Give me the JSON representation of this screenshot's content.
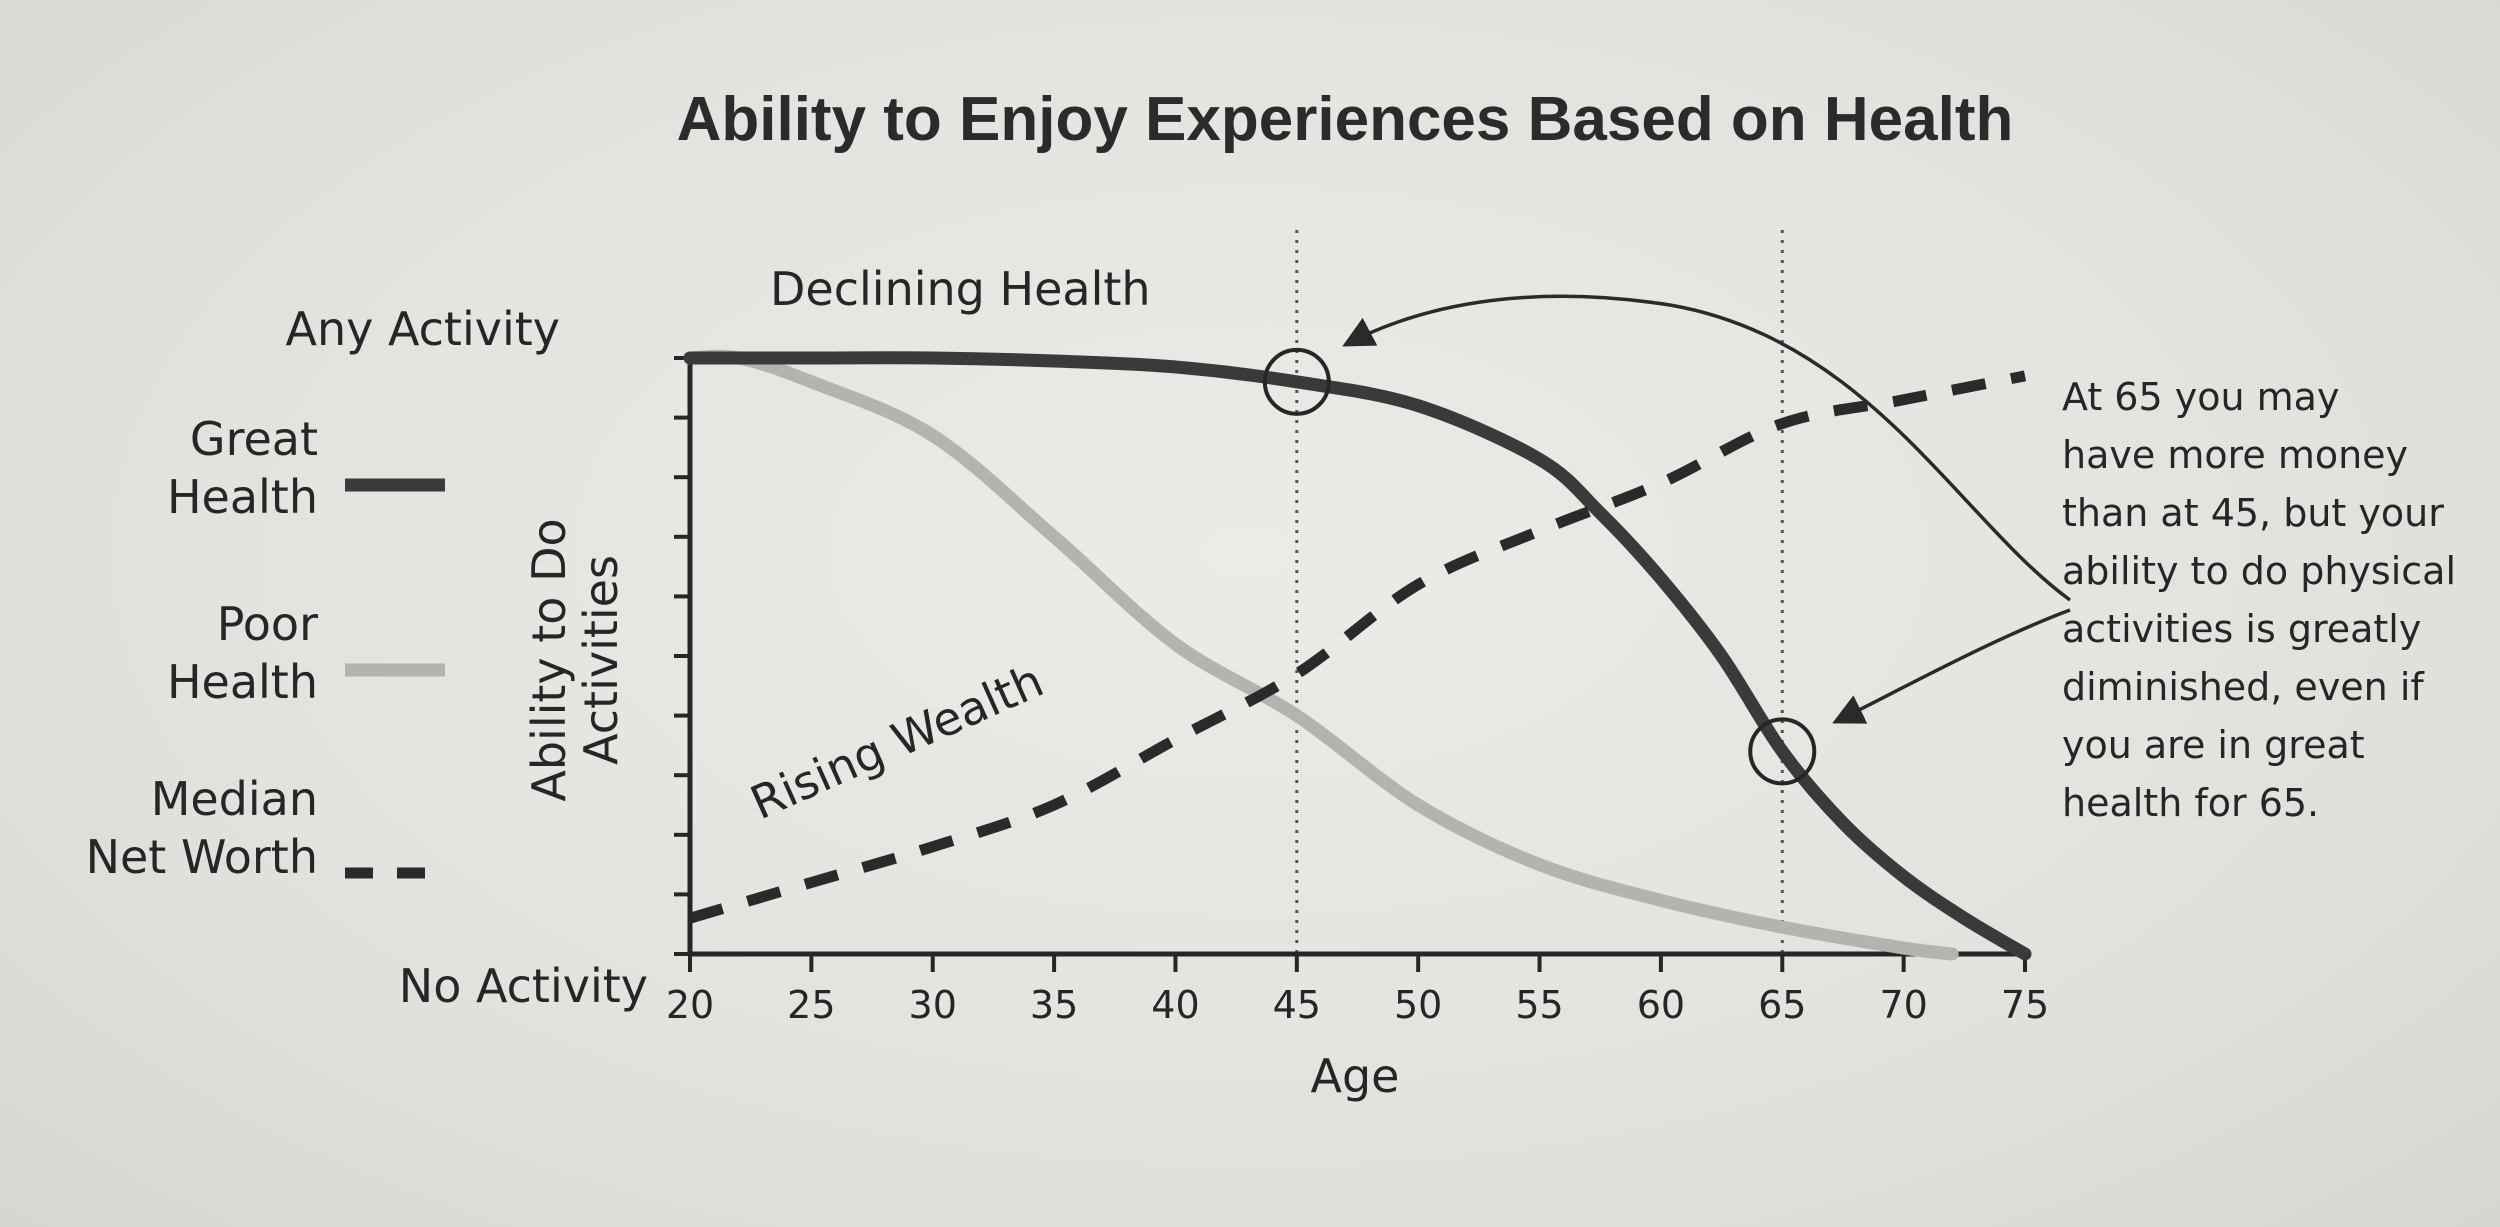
{
  "chart_data": {
    "type": "line",
    "title": "Ability to Enjoy Experiences Based on Health",
    "xlabel": "Age",
    "ylabel": "Ability to Do Activities",
    "y_top_label": "Any Activity",
    "y_bottom_label": "No Activity",
    "xlim": [
      20,
      75
    ],
    "ylim": [
      0,
      10
    ],
    "x_ticks": [
      20,
      25,
      30,
      35,
      40,
      45,
      50,
      55,
      60,
      65,
      70,
      75
    ],
    "y_tick_count": 11,
    "reference_lines": [
      45,
      65
    ],
    "series": [
      {
        "name": "Great Health",
        "legend_lines": [
          "Great",
          "Health"
        ],
        "style": "solid-dark",
        "color": "#3a3a3a",
        "x": [
          20,
          25,
          30,
          35,
          40,
          45,
          50,
          55,
          57.5,
          60,
          62.5,
          65,
          67.5,
          70,
          72.5,
          75
        ],
        "values": [
          10,
          10,
          10,
          9.95,
          9.85,
          9.6,
          9.2,
          8.3,
          7.4,
          6.3,
          5.0,
          3.4,
          2.2,
          1.3,
          0.6,
          0
        ]
      },
      {
        "name": "Poor Health",
        "legend_lines": [
          "Poor",
          "Health"
        ],
        "style": "solid-light",
        "color": "#b3b3b0",
        "x": [
          20,
          22,
          25,
          30,
          35,
          40,
          45,
          50,
          55,
          60,
          65,
          70,
          72
        ],
        "values": [
          10,
          10,
          9.6,
          8.7,
          7.0,
          5.2,
          4.0,
          2.5,
          1.5,
          0.9,
          0.45,
          0.1,
          0
        ]
      },
      {
        "name": "Median Net Worth",
        "legend_lines": [
          "Median",
          "Net Worth"
        ],
        "style": "dashed",
        "color": "#2a2a2a",
        "x": [
          20,
          25,
          30,
          35,
          40,
          45,
          50,
          55,
          60,
          65,
          70,
          75
        ],
        "values": [
          0.6,
          1.2,
          1.8,
          2.5,
          3.6,
          4.7,
          6.2,
          7.1,
          7.9,
          8.9,
          9.3,
          9.7
        ]
      }
    ],
    "annotations": {
      "declining": "Declining Health",
      "rising": "Rising Wealth",
      "circles": [
        {
          "x": 45,
          "y": 9.6
        },
        {
          "x": 65,
          "y": 3.4
        }
      ],
      "note_lines": [
        "At 65 you may",
        "have more money",
        "than at 45, but your",
        "ability to do physical",
        "activities is greatly",
        "diminished, even if",
        "you are in great",
        "health for 65."
      ]
    }
  }
}
